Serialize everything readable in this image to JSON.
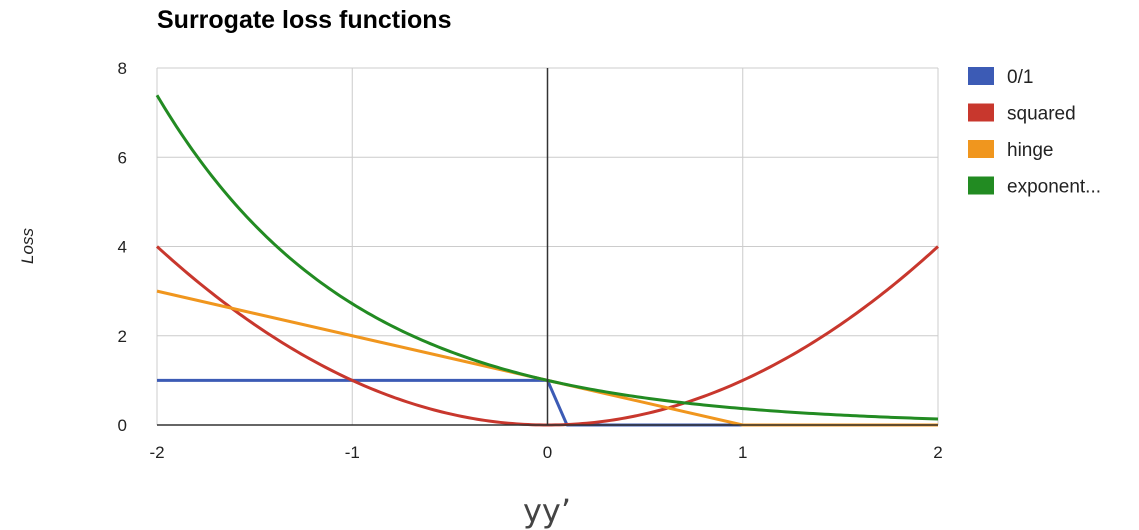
{
  "chart_data": {
    "type": "line",
    "title": "Surrogate loss functions",
    "xlabel": "yy’",
    "ylabel": "Loss",
    "xlim": [
      -2,
      2
    ],
    "ylim": [
      0,
      8
    ],
    "x_ticks": [
      "-2",
      "-1",
      "0",
      "1",
      "2"
    ],
    "y_ticks": [
      "0",
      "2",
      "4",
      "6",
      "8"
    ],
    "grid": true,
    "legend_position": "right",
    "series": [
      {
        "name": "0/1",
        "color": "#3c5bb5",
        "x": [
          -2,
          0,
          0.1,
          2
        ],
        "y": [
          1,
          1,
          0,
          0
        ]
      },
      {
        "name": "squared",
        "color": "#c8372d",
        "x": [
          -2,
          -1.5,
          -1,
          -0.5,
          0,
          0.5,
          1,
          1.5,
          2
        ],
        "y": [
          4,
          2.25,
          1,
          0.25,
          0,
          0.25,
          1,
          2.25,
          4
        ]
      },
      {
        "name": "hinge",
        "color": "#f0961e",
        "x": [
          -2,
          0,
          1,
          2
        ],
        "y": [
          3,
          1,
          0,
          0
        ]
      },
      {
        "name": "exponent...",
        "color": "#228b22",
        "x": [
          -2,
          -1.5,
          -1,
          -0.5,
          0,
          0.5,
          1,
          1.5,
          2
        ],
        "y": [
          7.39,
          4.48,
          2.72,
          1.65,
          1,
          0.61,
          0.37,
          0.22,
          0.14
        ]
      }
    ]
  }
}
